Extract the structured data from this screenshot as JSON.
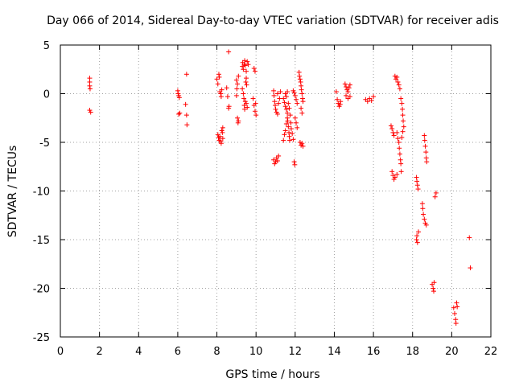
{
  "chart_data": {
    "type": "scatter",
    "title": "Day 066 of 2014, Sidereal Day-to-day VTEC variation (SDTVAR) for receiver adis",
    "xlabel": "GPS time / hours",
    "ylabel": "SDTVAR / TECUs",
    "xlim": [
      0,
      22
    ],
    "ylim": [
      -25,
      5
    ],
    "xticks": [
      0,
      2,
      4,
      6,
      8,
      10,
      12,
      14,
      16,
      18,
      20,
      22
    ],
    "yticks": [
      5,
      0,
      -5,
      -10,
      -15,
      -20,
      -25
    ],
    "grid": true,
    "marker": "+",
    "color": "#ff0000",
    "series": [
      {
        "name": "SDTVAR",
        "points": [
          [
            1.5,
            1.6
          ],
          [
            1.5,
            1.2
          ],
          [
            1.5,
            0.8
          ],
          [
            1.52,
            0.5
          ],
          [
            1.5,
            -1.7
          ],
          [
            1.55,
            -1.9
          ],
          [
            6.0,
            0.3
          ],
          [
            6.02,
            0.0
          ],
          [
            6.05,
            -0.2
          ],
          [
            6.08,
            -0.4
          ],
          [
            6.1,
            -2.0
          ],
          [
            6.05,
            -2.1
          ],
          [
            6.45,
            2.0
          ],
          [
            6.4,
            -1.1
          ],
          [
            6.45,
            -2.2
          ],
          [
            6.47,
            -3.2
          ],
          [
            8.0,
            1.5
          ],
          [
            8.05,
            1.0
          ],
          [
            8.1,
            2.0
          ],
          [
            8.12,
            1.7
          ],
          [
            8.15,
            0.2
          ],
          [
            8.2,
            0.0
          ],
          [
            8.22,
            -0.3
          ],
          [
            8.25,
            0.4
          ],
          [
            8.05,
            -4.2
          ],
          [
            8.08,
            -4.5
          ],
          [
            8.12,
            -4.8
          ],
          [
            8.15,
            -4.4
          ],
          [
            8.2,
            -4.9
          ],
          [
            8.22,
            -5.1
          ],
          [
            8.25,
            -3.8
          ],
          [
            8.3,
            -3.5
          ],
          [
            8.28,
            -4.0
          ],
          [
            8.3,
            -4.6
          ],
          [
            8.6,
            4.3
          ],
          [
            8.55,
            -0.3
          ],
          [
            8.6,
            -1.5
          ],
          [
            8.62,
            -1.3
          ],
          [
            8.5,
            0.6
          ],
          [
            9.0,
            1.4
          ],
          [
            9.05,
            1.0
          ],
          [
            9.02,
            0.5
          ],
          [
            9.0,
            -0.2
          ],
          [
            9.05,
            -2.5
          ],
          [
            9.1,
            -2.8
          ],
          [
            9.08,
            -3.0
          ],
          [
            9.1,
            1.8
          ],
          [
            9.3,
            2.8
          ],
          [
            9.32,
            3.2
          ],
          [
            9.35,
            2.5
          ],
          [
            9.4,
            3.0
          ],
          [
            9.42,
            3.4
          ],
          [
            9.45,
            2.9
          ],
          [
            9.5,
            2.3
          ],
          [
            9.55,
            3.3
          ],
          [
            9.6,
            3.0
          ],
          [
            9.3,
            0.5
          ],
          [
            9.35,
            0.0
          ],
          [
            9.38,
            -0.5
          ],
          [
            9.4,
            -1.2
          ],
          [
            9.42,
            -1.6
          ],
          [
            9.45,
            -0.8
          ],
          [
            9.5,
            -1.0
          ],
          [
            9.55,
            -1.4
          ],
          [
            9.48,
            1.2
          ],
          [
            9.5,
            1.6
          ],
          [
            9.52,
            0.9
          ],
          [
            9.9,
            2.6
          ],
          [
            9.95,
            2.3
          ],
          [
            9.85,
            -0.5
          ],
          [
            9.9,
            -1.2
          ],
          [
            9.95,
            -1.8
          ],
          [
            10.0,
            -2.2
          ],
          [
            9.98,
            -1.0
          ],
          [
            10.9,
            0.3
          ],
          [
            10.92,
            -0.2
          ],
          [
            10.95,
            -0.8
          ],
          [
            10.98,
            -1.2
          ],
          [
            11.0,
            -1.6
          ],
          [
            11.05,
            -1.9
          ],
          [
            11.1,
            -2.1
          ],
          [
            11.15,
            -1.0
          ],
          [
            11.2,
            -0.5
          ],
          [
            11.25,
            0.2
          ],
          [
            11.1,
            0.0
          ],
          [
            10.9,
            -6.8
          ],
          [
            10.95,
            -7.2
          ],
          [
            11.0,
            -7.0
          ],
          [
            11.05,
            -6.6
          ],
          [
            11.1,
            -6.9
          ],
          [
            11.15,
            -6.4
          ],
          [
            11.4,
            -0.5
          ],
          [
            11.45,
            -0.9
          ],
          [
            11.5,
            -1.3
          ],
          [
            11.55,
            -1.6
          ],
          [
            11.6,
            -2.0
          ],
          [
            11.62,
            -2.8
          ],
          [
            11.65,
            -3.4
          ],
          [
            11.68,
            -4.0
          ],
          [
            11.7,
            -4.4
          ],
          [
            11.72,
            -4.8
          ],
          [
            11.5,
            0.0
          ],
          [
            11.55,
            -0.3
          ],
          [
            11.6,
            0.2
          ],
          [
            11.65,
            -1.0
          ],
          [
            11.7,
            -1.5
          ],
          [
            11.75,
            -2.2
          ],
          [
            11.78,
            -3.0
          ],
          [
            11.8,
            -3.6
          ],
          [
            11.85,
            -4.1
          ],
          [
            11.9,
            -4.7
          ],
          [
            11.4,
            -4.8
          ],
          [
            11.45,
            -4.2
          ],
          [
            11.5,
            -3.8
          ],
          [
            11.55,
            -3.1
          ],
          [
            11.6,
            -2.5
          ],
          [
            11.95,
            -7.0
          ],
          [
            11.98,
            -7.3
          ],
          [
            11.9,
            0.3
          ],
          [
            11.95,
            0.1
          ],
          [
            12.0,
            -0.2
          ],
          [
            12.05,
            -0.6
          ],
          [
            12.1,
            -1.0
          ],
          [
            12.0,
            -2.5
          ],
          [
            12.05,
            -3.0
          ],
          [
            12.1,
            -3.5
          ],
          [
            12.2,
            2.2
          ],
          [
            12.22,
            1.8
          ],
          [
            12.25,
            1.5
          ],
          [
            12.28,
            1.2
          ],
          [
            12.3,
            0.8
          ],
          [
            12.32,
            0.4
          ],
          [
            12.35,
            0.0
          ],
          [
            12.38,
            -0.5
          ],
          [
            12.4,
            -0.8
          ],
          [
            12.25,
            -5.0
          ],
          [
            12.3,
            -5.3
          ],
          [
            12.35,
            -5.1
          ],
          [
            12.4,
            -5.4
          ],
          [
            12.3,
            -1.5
          ],
          [
            12.35,
            -2.0
          ],
          [
            14.1,
            0.2
          ],
          [
            14.15,
            -0.6
          ],
          [
            14.2,
            -1.0
          ],
          [
            14.25,
            -1.3
          ],
          [
            14.3,
            -1.1
          ],
          [
            14.32,
            -0.8
          ],
          [
            14.55,
            1.0
          ],
          [
            14.6,
            0.7
          ],
          [
            14.65,
            0.4
          ],
          [
            14.7,
            0.2
          ],
          [
            14.75,
            0.6
          ],
          [
            14.8,
            0.9
          ],
          [
            14.6,
            -0.2
          ],
          [
            14.7,
            -0.5
          ],
          [
            14.8,
            -0.3
          ],
          [
            15.6,
            -0.6
          ],
          [
            15.7,
            -0.8
          ],
          [
            15.8,
            -0.5
          ],
          [
            15.9,
            -0.7
          ],
          [
            16.0,
            -0.3
          ],
          [
            16.9,
            -3.3
          ],
          [
            16.95,
            -3.6
          ],
          [
            17.0,
            -4.0
          ],
          [
            17.05,
            -4.3
          ],
          [
            16.95,
            -8.0
          ],
          [
            17.0,
            -8.4
          ],
          [
            17.05,
            -8.8
          ],
          [
            17.1,
            -8.6
          ],
          [
            17.1,
            1.8
          ],
          [
            17.15,
            1.5
          ],
          [
            17.2,
            1.7
          ],
          [
            17.25,
            1.2
          ],
          [
            17.3,
            0.9
          ],
          [
            17.35,
            0.5
          ],
          [
            17.2,
            -4.0
          ],
          [
            17.25,
            -4.6
          ],
          [
            17.3,
            -5.0
          ],
          [
            17.32,
            -5.6
          ],
          [
            17.35,
            -6.2
          ],
          [
            17.38,
            -6.8
          ],
          [
            17.4,
            -7.2
          ],
          [
            17.42,
            -8.0
          ],
          [
            17.2,
            -8.3
          ],
          [
            17.4,
            -0.5
          ],
          [
            17.45,
            -1.0
          ],
          [
            17.48,
            -1.6
          ],
          [
            17.5,
            -2.2
          ],
          [
            17.52,
            -2.8
          ],
          [
            17.55,
            -3.4
          ],
          [
            17.5,
            -3.9
          ],
          [
            17.45,
            -4.5
          ],
          [
            18.2,
            -8.6
          ],
          [
            18.22,
            -9.0
          ],
          [
            18.25,
            -9.4
          ],
          [
            18.28,
            -9.8
          ],
          [
            18.2,
            -15.0
          ],
          [
            18.22,
            -14.6
          ],
          [
            18.25,
            -15.3
          ],
          [
            18.3,
            -14.2
          ],
          [
            18.5,
            -11.3
          ],
          [
            18.52,
            -11.8
          ],
          [
            18.55,
            -12.4
          ],
          [
            18.6,
            -12.9
          ],
          [
            18.65,
            -13.3
          ],
          [
            18.7,
            -13.5
          ],
          [
            18.6,
            -4.3
          ],
          [
            18.62,
            -4.8
          ],
          [
            18.65,
            -5.4
          ],
          [
            18.68,
            -6.0
          ],
          [
            18.7,
            -6.6
          ],
          [
            18.72,
            -7.0
          ],
          [
            19.0,
            -19.6
          ],
          [
            19.05,
            -20.0
          ],
          [
            19.08,
            -20.3
          ],
          [
            19.1,
            -19.4
          ],
          [
            19.15,
            -10.6
          ],
          [
            19.2,
            -10.2
          ],
          [
            20.1,
            -22.0
          ],
          [
            20.15,
            -22.6
          ],
          [
            20.2,
            -23.2
          ],
          [
            20.22,
            -23.6
          ],
          [
            20.25,
            -21.5
          ],
          [
            20.28,
            -21.9
          ],
          [
            20.9,
            -14.8
          ],
          [
            20.95,
            -17.9
          ]
        ]
      }
    ]
  }
}
